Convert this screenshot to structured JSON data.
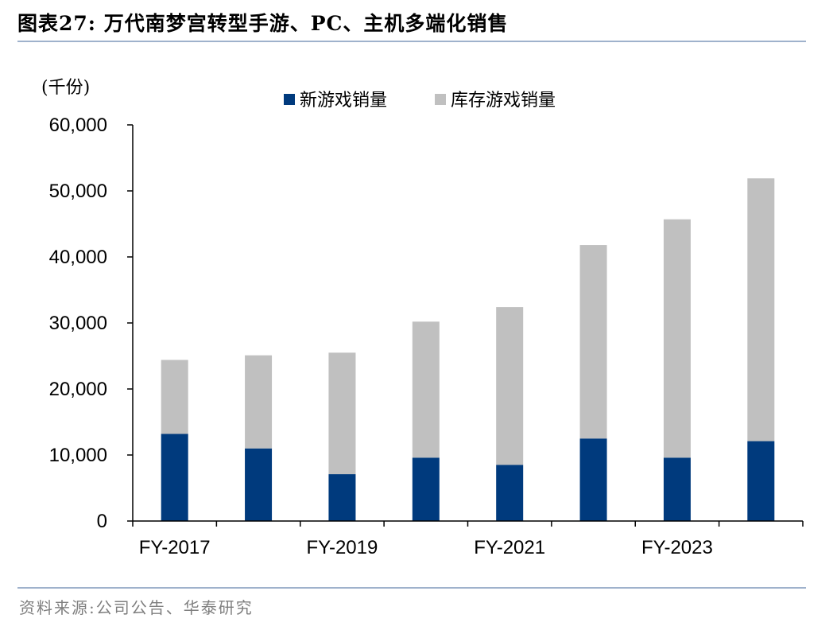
{
  "figure": {
    "title": "图表27:  万代南梦宫转型手游、PC、主机多端化销售",
    "source": "资料来源:公司公告、华泰研究"
  },
  "chart_data": {
    "type": "bar",
    "stacked": true,
    "unit_label": "(千份)",
    "categories": [
      "FY-2017",
      "FY-2018",
      "FY-2019",
      "FY-2020",
      "FY-2021",
      "FY-2022",
      "FY-2023",
      "FY-2024"
    ],
    "shown_category_labels": [
      "FY-2017",
      "FY-2019",
      "FY-2021",
      "FY-2023"
    ],
    "series": [
      {
        "name": "新游戏销量",
        "color": "#003a7d",
        "values": [
          13200,
          11000,
          7100,
          9600,
          8500,
          12500,
          9600,
          12100
        ]
      },
      {
        "name": "库存游戏销量",
        "color": "#c0c0c0",
        "values": [
          11200,
          14100,
          18400,
          20600,
          23900,
          29300,
          36100,
          39800
        ]
      }
    ],
    "ylim": [
      0,
      60000
    ],
    "yticks": [
      0,
      10000,
      20000,
      30000,
      40000,
      50000,
      60000
    ],
    "ytick_labels": [
      "0",
      "10,000",
      "20,000",
      "30,000",
      "40,000",
      "50,000",
      "60,000"
    ],
    "grid": false,
    "legend_position": "top-center"
  }
}
